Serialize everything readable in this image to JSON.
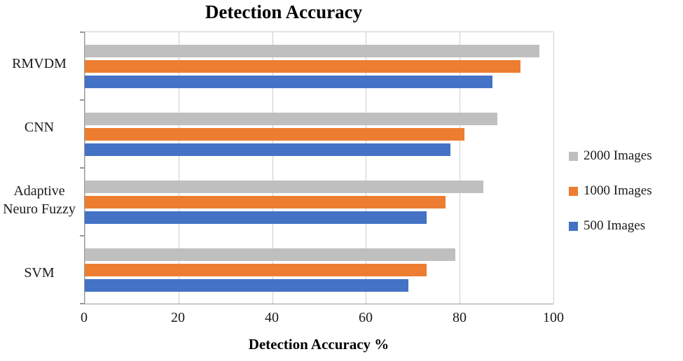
{
  "chart_data": {
    "type": "bar",
    "orientation": "horizontal",
    "title": "Detection Accuracy",
    "xlabel": "Detection Accuracy %",
    "ylabel": "",
    "categories": [
      "RMVDM",
      "CNN",
      "Adaptive Neuro Fuzzy",
      "SVM"
    ],
    "series": [
      {
        "name": "2000 Images",
        "color": "#bfbfbf",
        "values": [
          97,
          88,
          85,
          79
        ]
      },
      {
        "name": "1000 Images",
        "color": "#ed7d31",
        "values": [
          93,
          81,
          77,
          73
        ]
      },
      {
        "name": "500 Images",
        "color": "#4472c4",
        "values": [
          87,
          78,
          73,
          69
        ]
      }
    ],
    "xlim": [
      0,
      100
    ],
    "xticks": [
      0,
      20,
      40,
      60,
      80,
      100
    ],
    "grid": "vertical",
    "legend_position": "right"
  }
}
